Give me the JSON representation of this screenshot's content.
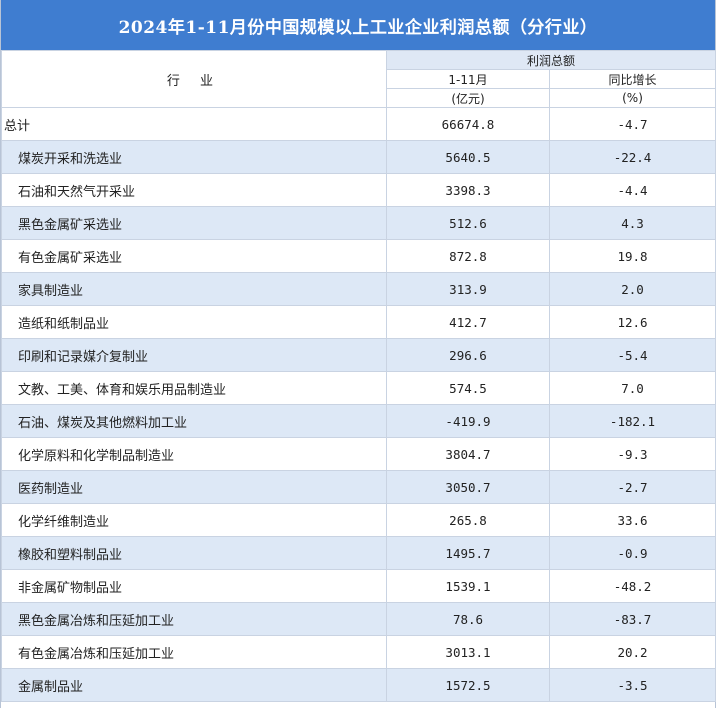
{
  "title": "2024年1-11月份中国规模以上工业企业利润总额（分行业）",
  "header": {
    "industry": "行 业",
    "profit_total": "利润总额",
    "period": "1-11月",
    "growth": "同比增长",
    "unit_amount": "(亿元)",
    "unit_pct": "(%)"
  },
  "rows": [
    {
      "name": "总计",
      "amount": "66674.8",
      "growth": "-4.7"
    },
    {
      "name": "煤炭开采和洗选业",
      "amount": "5640.5",
      "growth": "-22.4"
    },
    {
      "name": "石油和天然气开采业",
      "amount": "3398.3",
      "growth": "-4.4"
    },
    {
      "name": "黑色金属矿采选业",
      "amount": "512.6",
      "growth": "4.3"
    },
    {
      "name": "有色金属矿采选业",
      "amount": "872.8",
      "growth": "19.8"
    },
    {
      "name": "家具制造业",
      "amount": "313.9",
      "growth": "2.0"
    },
    {
      "name": "造纸和纸制品业",
      "amount": "412.7",
      "growth": "12.6"
    },
    {
      "name": "印刷和记录媒介复制业",
      "amount": "296.6",
      "growth": "-5.4"
    },
    {
      "name": "文教、工美、体育和娱乐用品制造业",
      "amount": "574.5",
      "growth": "7.0"
    },
    {
      "name": "石油、煤炭及其他燃料加工业",
      "amount": "-419.9",
      "growth": "-182.1"
    },
    {
      "name": "化学原料和化学制品制造业",
      "amount": "3804.7",
      "growth": "-9.3"
    },
    {
      "name": "医药制造业",
      "amount": "3050.7",
      "growth": "-2.7"
    },
    {
      "name": "化学纤维制造业",
      "amount": "265.8",
      "growth": "33.6"
    },
    {
      "name": "橡胶和塑料制品业",
      "amount": "1495.7",
      "growth": "-0.9"
    },
    {
      "name": "非金属矿物制品业",
      "amount": "1539.1",
      "growth": "-48.2"
    },
    {
      "name": "黑色金属冶炼和压延加工业",
      "amount": "78.6",
      "growth": "-83.7"
    },
    {
      "name": "有色金属冶炼和压延加工业",
      "amount": "3013.1",
      "growth": "20.2"
    },
    {
      "name": "金属制品业",
      "amount": "1572.5",
      "growth": "-3.5"
    }
  ]
}
